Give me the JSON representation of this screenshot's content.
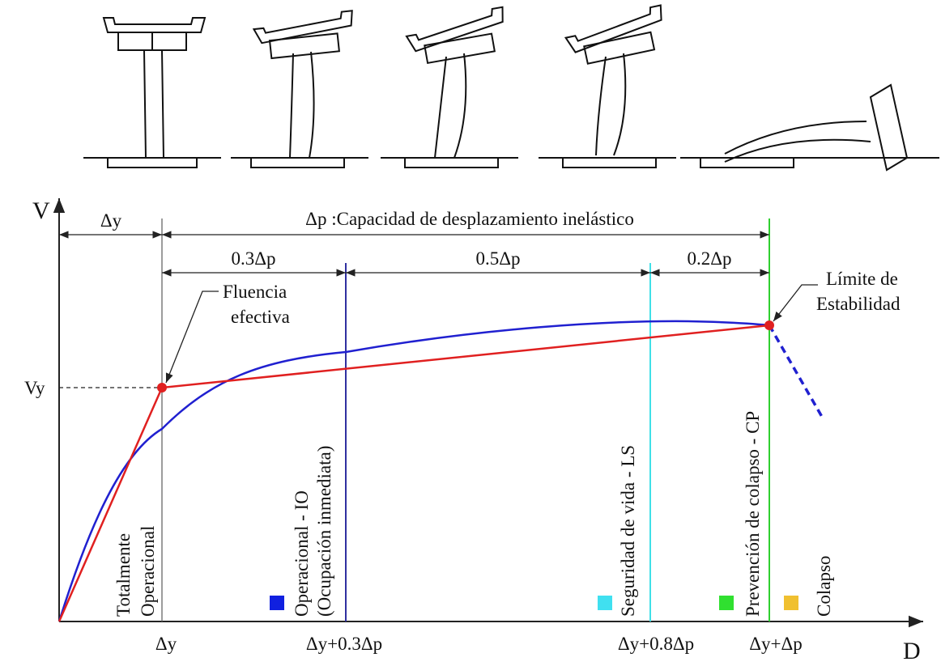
{
  "axes": {
    "y_label": "V",
    "x_label": "D",
    "yield_force": "Vy"
  },
  "dimensions": {
    "yield_displacement": "Δy",
    "inelastic_capacity": "Δp :Capacidad de desplazamiento inelástico",
    "segments": [
      "0.3Δp",
      "0.5Δp",
      "0.2Δp"
    ]
  },
  "annotations": {
    "yield": [
      "Fluencia",
      "efectiva"
    ],
    "stability": [
      "Límite de",
      "Estabilidad"
    ]
  },
  "levels": [
    {
      "label": [
        "Totalmente",
        "Operacional"
      ]
    },
    {
      "label": [
        "Operacional - IO",
        "(Ocupación inmediata)"
      ]
    },
    {
      "label": [
        "Seguridad de vida - LS"
      ]
    },
    {
      "label": [
        "Prevención de colapso - CP"
      ]
    },
    {
      "label": [
        "Colapso"
      ]
    }
  ],
  "x_ticks": [
    "Δy",
    "Δy+0.3Δp",
    "Δy+0.8Δp",
    "Δy+Δp"
  ]
}
